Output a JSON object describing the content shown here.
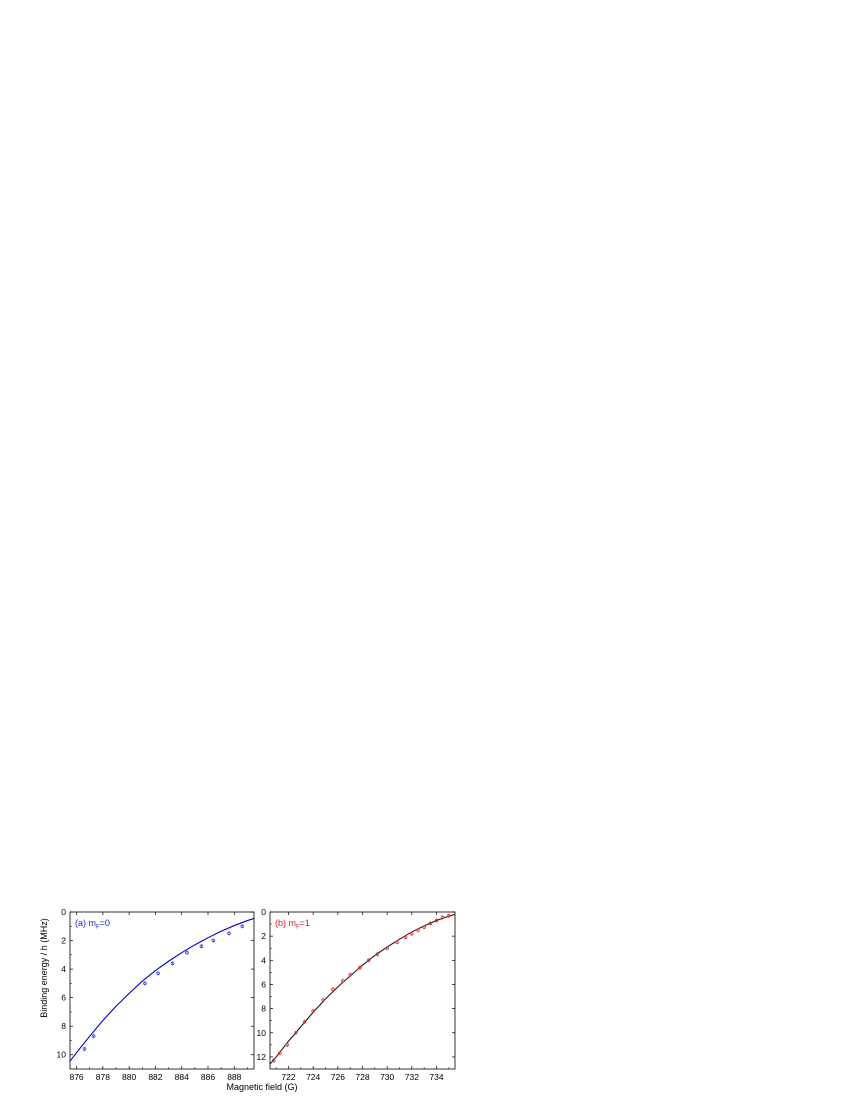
{
  "figure": {
    "xlabel": "Magnetic field (G)",
    "ylabel": "Binding energy / h (MHz)"
  },
  "chart_data": [
    {
      "type": "scatter",
      "panel_label": "(a) m",
      "panel_label_sub": "F",
      "panel_label_tail": "=0",
      "label_color": "#1f1fd6",
      "line_color": "#0000cc",
      "marker_color": "#3a3ae0",
      "xlim": [
        875.5,
        889.5
      ],
      "ylim": [
        0,
        11
      ],
      "y_inverted": true,
      "xticks": [
        876,
        878,
        880,
        882,
        884,
        886,
        888
      ],
      "yticks": [
        0,
        2,
        4,
        6,
        8,
        10
      ],
      "series": [
        {
          "kind": "points",
          "x": [
            876.6,
            877.3,
            881.2,
            882.2,
            883.3,
            884.4,
            885.5,
            886.4,
            887.6,
            888.6
          ],
          "y": [
            9.6,
            8.7,
            5.0,
            4.3,
            3.6,
            2.85,
            2.4,
            2.0,
            1.5,
            1.0
          ]
        },
        {
          "kind": "fit",
          "x": [
            875.5,
            876,
            877,
            878,
            879,
            880,
            881,
            882,
            883,
            884,
            885,
            886,
            887,
            888,
            889,
            889.5
          ],
          "y": [
            10.45,
            9.85,
            8.7,
            7.6,
            6.6,
            5.7,
            4.85,
            4.1,
            3.45,
            2.85,
            2.3,
            1.8,
            1.35,
            0.95,
            0.6,
            0.45
          ]
        }
      ]
    },
    {
      "type": "scatter",
      "panel_label": "(b) m",
      "panel_label_sub": "F",
      "panel_label_tail": "=1",
      "label_color": "#e02020",
      "line_color": "#1a1a1a",
      "marker_color": "#e83030",
      "xlim": [
        720.5,
        735.5
      ],
      "ylim": [
        0,
        13
      ],
      "y_inverted": true,
      "xticks": [
        722,
        724,
        726,
        728,
        730,
        732,
        734
      ],
      "yticks": [
        0,
        2,
        4,
        6,
        8,
        10,
        12
      ],
      "series": [
        {
          "kind": "points",
          "x": [
            720.8,
            721.3,
            721.9,
            722.6,
            723.3,
            724.0,
            724.8,
            725.6,
            726.4,
            727.0,
            727.8,
            728.5,
            729.2,
            730.0,
            730.8,
            731.5,
            732.0,
            732.5,
            733.0,
            733.5,
            734.0,
            734.5,
            735.0
          ],
          "y": [
            12.3,
            11.7,
            11.0,
            10.0,
            9.1,
            8.2,
            7.3,
            6.4,
            5.7,
            5.2,
            4.6,
            4.0,
            3.5,
            3.0,
            2.5,
            2.1,
            1.8,
            1.5,
            1.25,
            0.95,
            0.7,
            0.45,
            0.3
          ]
        },
        {
          "kind": "fit",
          "x": [
            720.5,
            721,
            722,
            723,
            724,
            725,
            726,
            727,
            728,
            729,
            730,
            731,
            732,
            733,
            734,
            735,
            735.5
          ],
          "y": [
            12.6,
            12.0,
            10.7,
            9.5,
            8.3,
            7.2,
            6.2,
            5.3,
            4.4,
            3.6,
            2.9,
            2.25,
            1.65,
            1.15,
            0.7,
            0.35,
            0.2
          ]
        }
      ]
    }
  ]
}
